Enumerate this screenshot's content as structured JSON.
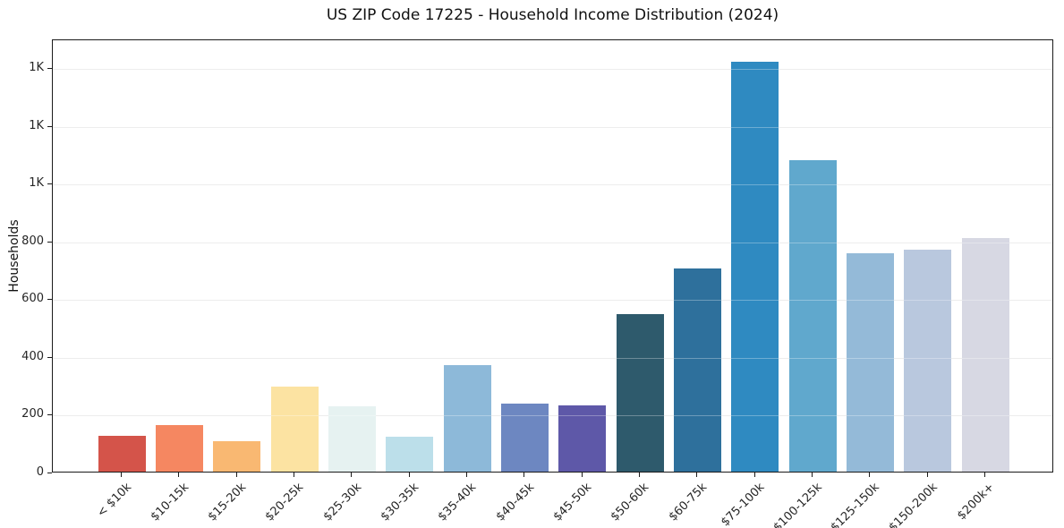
{
  "chart_data": {
    "type": "bar",
    "title": "US ZIP Code 17225 - Household Income Distribution (2024)",
    "xlabel": "",
    "ylabel": "Households",
    "categories": [
      "< $10k",
      "$10-15k",
      "$15-20k",
      "$20-25k",
      "$25-30k",
      "$30-35k",
      "$35-40k",
      "$40-45k",
      "$45-50k",
      "$50-60k",
      "$60-75k",
      "$75-100k",
      "$100-125k",
      "$125-150k",
      "$150-200k",
      "$200k+"
    ],
    "values": [
      125,
      160,
      105,
      295,
      225,
      120,
      370,
      235,
      230,
      545,
      705,
      1420,
      1080,
      755,
      770,
      810
    ],
    "bar_colors": [
      "#d4544a",
      "#f58761",
      "#f9b872",
      "#fce3a2",
      "#e6f2f1",
      "#bcdfea",
      "#8db9d9",
      "#6d87c1",
      "#5e58a8",
      "#2e5a6c",
      "#2e709c",
      "#2f8ac1",
      "#60a8cd",
      "#94bad8",
      "#b9c8de",
      "#d7d8e3"
    ],
    "ylim": [
      0,
      1500
    ],
    "ytick_values": [
      0,
      200,
      400,
      600,
      800,
      1000,
      1200,
      1400
    ],
    "ytick_labels": [
      "0",
      "200",
      "400",
      "600",
      "800",
      "1K",
      "1K",
      "1K"
    ],
    "grid": "horizontal",
    "legend_position": "none",
    "colors": {
      "background": "#ffffff",
      "axis": "#1a1a1a",
      "gridline": "#e6e6e6",
      "tick_text": "#262626"
    }
  }
}
